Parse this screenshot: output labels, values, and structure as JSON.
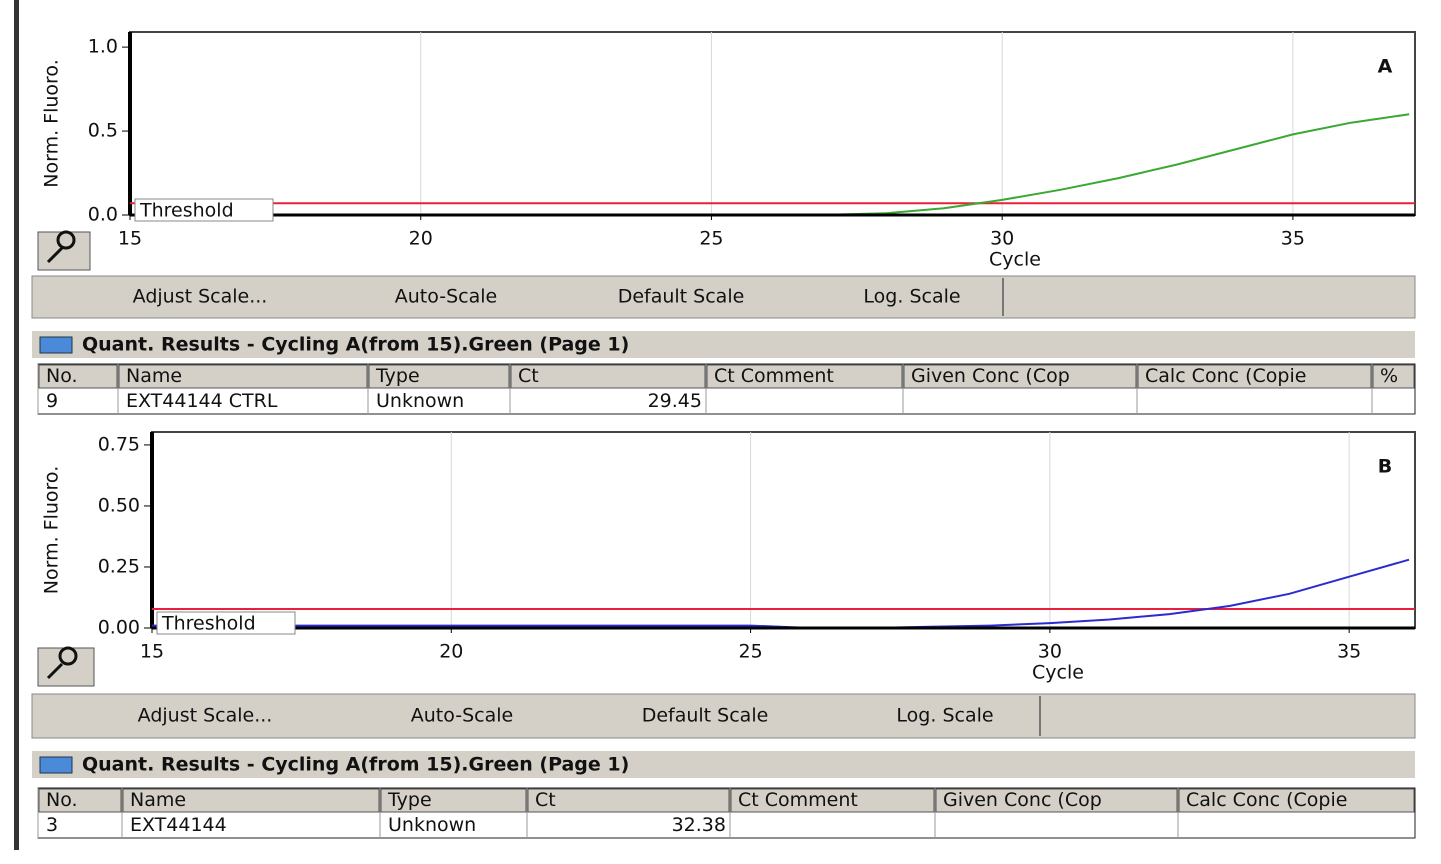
{
  "chart_data": [
    {
      "type": "line",
      "annotation": "A",
      "y_label": "Norm. Fluoro.",
      "x_label": "Cycle",
      "x": [
        15,
        16,
        17,
        18,
        19,
        20,
        21,
        22,
        23,
        24,
        25,
        26,
        27,
        28,
        29,
        30,
        31,
        32,
        33,
        34,
        35,
        36,
        37
      ],
      "series": [
        {
          "color": "#3aa832",
          "values": [
            0,
            0,
            0,
            0,
            0,
            0,
            0,
            0,
            0,
            0,
            0,
            0,
            0.002,
            0.01,
            0.04,
            0.09,
            0.15,
            0.22,
            0.3,
            0.39,
            0.48,
            0.55,
            0.6
          ]
        }
      ],
      "xlim": [
        15,
        37.1
      ],
      "ylim": [
        0,
        1.09
      ],
      "xticks": [
        15,
        20,
        25,
        30,
        35
      ],
      "yticks": [
        {
          "value": 0,
          "label": "0.0"
        },
        {
          "value": 0.5,
          "label": "0.5"
        },
        {
          "value": 1,
          "label": "1.0"
        }
      ],
      "grid": true,
      "threshold": {
        "label": "Threshold",
        "value": 0.07,
        "color": "#e8203c"
      }
    },
    {
      "type": "line",
      "annotation": "B",
      "y_label": "Norm. Fluoro.",
      "x_label": "Cycle",
      "x": [
        15,
        16,
        17,
        18,
        19,
        20,
        21,
        22,
        23,
        24,
        25,
        26,
        27,
        28,
        29,
        30,
        31,
        32,
        33,
        34,
        35,
        36
      ],
      "series": [
        {
          "color": "#2b2bd0",
          "values": [
            0.01,
            0.01,
            0.01,
            0.01,
            0.01,
            0.01,
            0.01,
            0.01,
            0.01,
            0.01,
            0.01,
            0,
            0,
            0.005,
            0.01,
            0.02,
            0.035,
            0.057,
            0.09,
            0.14,
            0.21,
            0.28
          ]
        }
      ],
      "xlim": [
        15,
        36.1
      ],
      "ylim": [
        0,
        0.803
      ],
      "xticks": [
        15,
        20,
        25,
        30,
        35
      ],
      "yticks": [
        {
          "value": 0,
          "label": "0.00"
        },
        {
          "value": 0.25,
          "label": "0.25"
        },
        {
          "value": 0.5,
          "label": "0.50"
        },
        {
          "value": 0.75,
          "label": "0.75"
        }
      ],
      "grid": true,
      "threshold": {
        "label": "Threshold",
        "value": 0.078,
        "color": "#e8203c"
      }
    }
  ],
  "panels": [
    {
      "toolbar": [
        "Adjust Scale...",
        "Auto-Scale",
        "Default Scale",
        "Log. Scale"
      ],
      "results": {
        "title": "Quant. Results - Cycling A(from 15).Green (Page 1)",
        "columns": [
          "No.",
          "Name",
          "Type",
          "Ct",
          "Ct Comment",
          "Given Conc (Cop",
          "Calc Conc (Copie",
          "%"
        ],
        "rows": [
          [
            "9",
            "EXT44144 CTRL",
            "Unknown",
            29.45
          ]
        ]
      }
    },
    {
      "toolbar": [
        "Adjust Scale...",
        "Auto-Scale",
        "Default Scale",
        "Log. Scale"
      ],
      "results": {
        "title": "Quant. Results - Cycling A(from 15).Green (Page 1)",
        "columns": [
          "No.",
          "Name",
          "Type",
          "Ct",
          "Ct Comment",
          "Given Conc (Cop",
          "Calc Conc (Copie"
        ],
        "rows": [
          [
            "3",
            "EXT44144",
            "Unknown",
            32.38
          ]
        ]
      }
    }
  ]
}
